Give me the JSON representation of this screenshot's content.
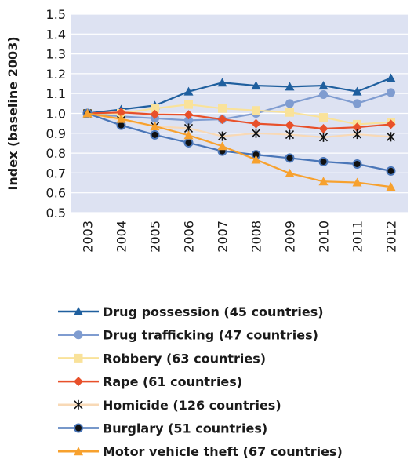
{
  "chart_data": {
    "type": "line",
    "title": "",
    "xlabel": "",
    "ylabel": "Index (baseline 2003)",
    "categories": [
      "2003",
      "2004",
      "2005",
      "2006",
      "2007",
      "2008",
      "2009",
      "2010",
      "2011",
      "2012"
    ],
    "ylim": [
      0.5,
      1.5
    ],
    "yticks": [
      "0.5",
      "0.6",
      "0.7",
      "0.8",
      "0.9",
      "1.0",
      "1.1",
      "1.2",
      "1.3",
      "1.4",
      "1.5"
    ],
    "grid": true,
    "plot_background": "#dde2f2",
    "legend_position": "bottom",
    "series": [
      {
        "name": "Drug possession (45 countries)",
        "color": "#1f5f9e",
        "marker": "triangle",
        "values": [
          1.0,
          1.02,
          1.04,
          1.11,
          1.155,
          1.14,
          1.135,
          1.14,
          1.11,
          1.178
        ]
      },
      {
        "name": "Drug trafficking (47 countries)",
        "color": "#7f9cd0",
        "marker": "circle-light",
        "values": [
          1.0,
          0.985,
          0.975,
          0.965,
          0.97,
          1.0,
          1.05,
          1.095,
          1.05,
          1.105
        ]
      },
      {
        "name": "Robbery (63 countries)",
        "color": "#f9e29a",
        "marker": "square",
        "values": [
          1.0,
          1.0,
          1.025,
          1.045,
          1.025,
          1.015,
          1.005,
          0.98,
          0.945,
          0.955
        ]
      },
      {
        "name": "Rape (61 countries)",
        "color": "#e8502a",
        "marker": "diamond",
        "values": [
          1.0,
          1.005,
          0.995,
          0.993,
          0.97,
          0.948,
          0.94,
          0.923,
          0.93,
          0.945
        ]
      },
      {
        "name": "Homicide (126 countries)",
        "color": "#f8d9b6",
        "marker": "asterisk",
        "values": [
          1.0,
          0.965,
          0.935,
          0.925,
          0.885,
          0.9,
          0.893,
          0.88,
          0.895,
          0.882
        ]
      },
      {
        "name": "Burglary (51 countries)",
        "color": "#4a76b8",
        "marker": "circle-dark",
        "values": [
          1.0,
          0.94,
          0.892,
          0.852,
          0.81,
          0.792,
          0.775,
          0.757,
          0.745,
          0.71
        ]
      },
      {
        "name": "Motor vehicle theft (67 countries)",
        "color": "#f7a12e",
        "marker": "triangle",
        "values": [
          1.0,
          0.972,
          0.935,
          0.89,
          0.835,
          0.767,
          0.698,
          0.657,
          0.652,
          0.63
        ]
      }
    ]
  }
}
